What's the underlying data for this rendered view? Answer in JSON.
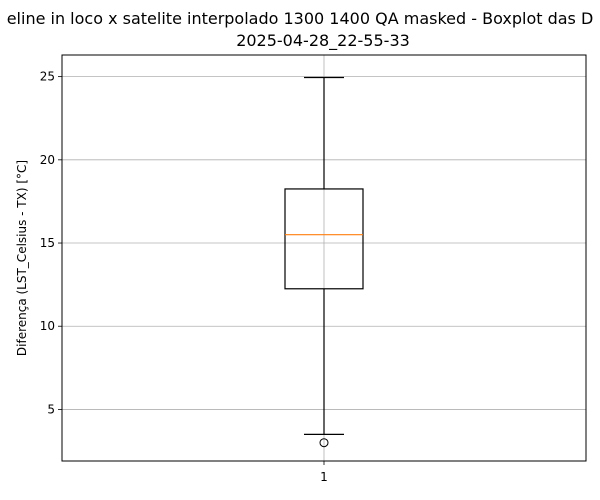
{
  "chart_data": {
    "type": "boxplot",
    "title_line1": "eline in loco x satelite interpolado 1300 1400 QA masked - Boxplot das D",
    "title_line2": "2025-04-28_22-55-33",
    "xlabel": "",
    "ylabel": "Diferença (LST_Celsius - TX) [°C]",
    "ylim": [
      1.9,
      26.3
    ],
    "yticks": [
      5,
      10,
      15,
      20,
      25
    ],
    "xticks": [
      "1"
    ],
    "grid": true,
    "box": {
      "category": "1",
      "whisker_low": 3.5,
      "q1": 12.25,
      "median": 15.5,
      "q3": 18.25,
      "whisker_high": 24.95,
      "outliers": [
        3.0
      ]
    },
    "colors": {
      "box": "#000000",
      "median": "#ff7f0e",
      "grid": "#b0b0b0"
    }
  }
}
